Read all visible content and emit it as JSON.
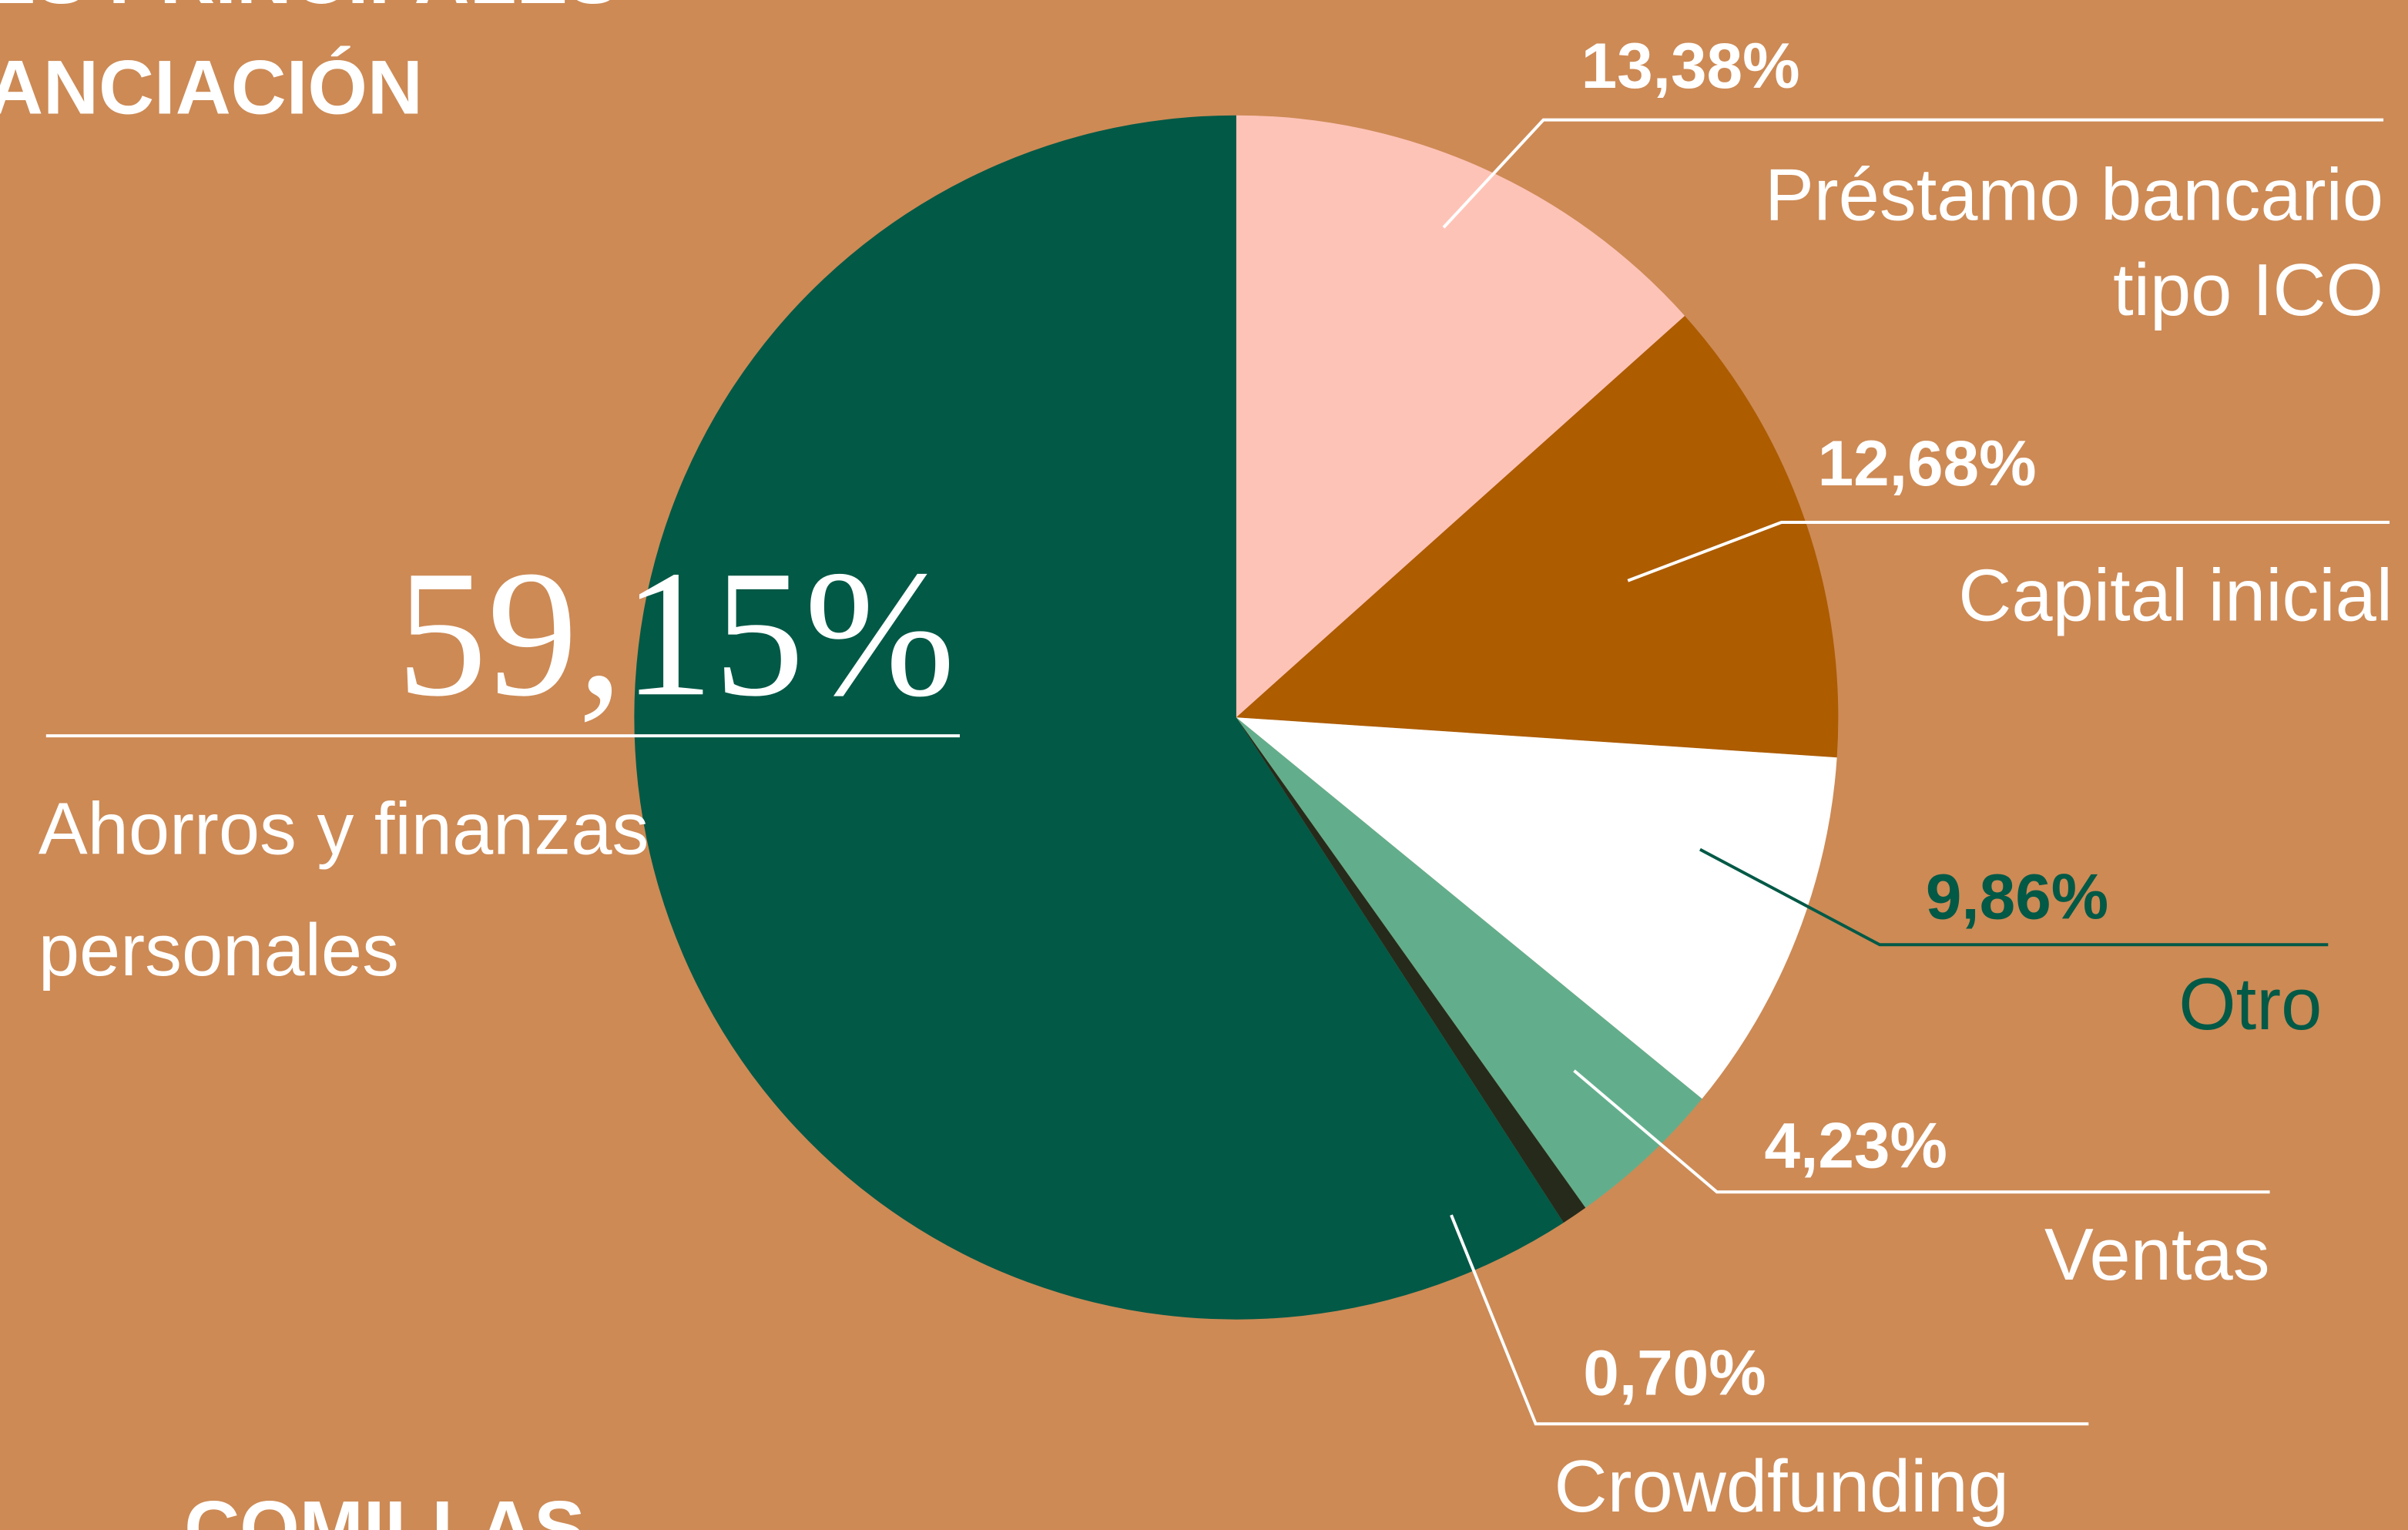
{
  "chart_data": {
    "type": "pie",
    "title": [
      "ES PRINCIPALES",
      "ANCIACIÓN"
    ],
    "categories": [
      [
        "Préstamo bancario",
        "tipo ICO"
      ],
      [
        "Capital inicial"
      ],
      [
        "Otro"
      ],
      [
        "Ventas"
      ],
      [
        "Crowdfunding"
      ],
      [
        "Ahorros y finanzas",
        "personales"
      ]
    ],
    "values": [
      13.38,
      12.68,
      9.86,
      4.23,
      0.7,
      59.15
    ],
    "value_labels": [
      "13,38%",
      "12,68%",
      "9,86%",
      "4,23%",
      "0,70%",
      "59,15%"
    ],
    "colors": [
      "#fec3b7",
      "#ad5c00",
      "#ffffff",
      "#62ae8c",
      "#262a1a",
      "#025946"
    ],
    "label_colors": [
      "#ffffff",
      "#ffffff",
      "#025946",
      "#ffffff",
      "#ffffff",
      "#ffffff"
    ],
    "logo": "COMILLAS"
  }
}
